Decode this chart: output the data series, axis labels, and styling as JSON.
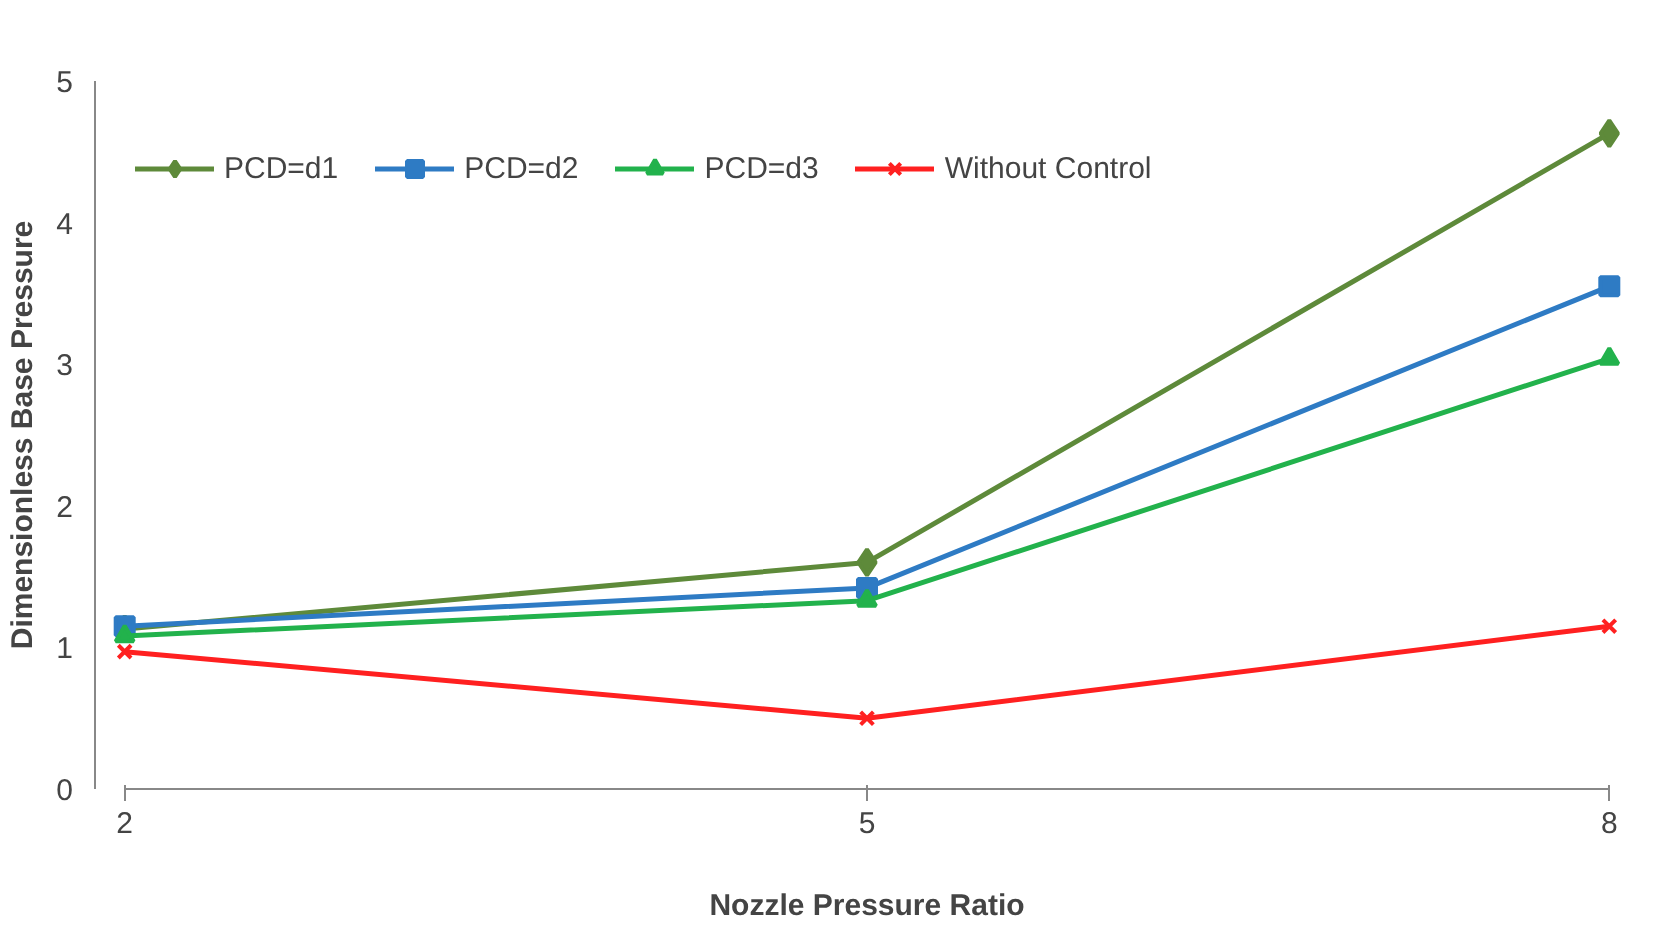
{
  "chart_data": {
    "type": "line",
    "xlabel": "Nozzle Pressure Ratio",
    "ylabel": "Dimensionless Base Pressure",
    "x": [
      2,
      5,
      8
    ],
    "series": [
      {
        "name": "PCD=d1",
        "color": "#5e8a3a",
        "marker": "diamond",
        "values": [
          1.13,
          1.6,
          4.63
        ]
      },
      {
        "name": "PCD=d2",
        "color": "#2e7bc4",
        "marker": "square",
        "values": [
          1.15,
          1.42,
          3.55
        ]
      },
      {
        "name": "PCD=d3",
        "color": "#22b24c",
        "marker": "triangle",
        "values": [
          1.08,
          1.33,
          3.04
        ]
      },
      {
        "name": "Without Control",
        "color": "#ff2020",
        "marker": "cross",
        "values": [
          0.97,
          0.5,
          1.15
        ]
      }
    ],
    "xlim": [
      2,
      8
    ],
    "xticks": [
      2,
      5,
      8
    ],
    "ylim": [
      0,
      5
    ],
    "yticks": [
      0,
      1,
      2,
      3,
      4,
      5
    ],
    "grid": false,
    "legend": "top"
  }
}
